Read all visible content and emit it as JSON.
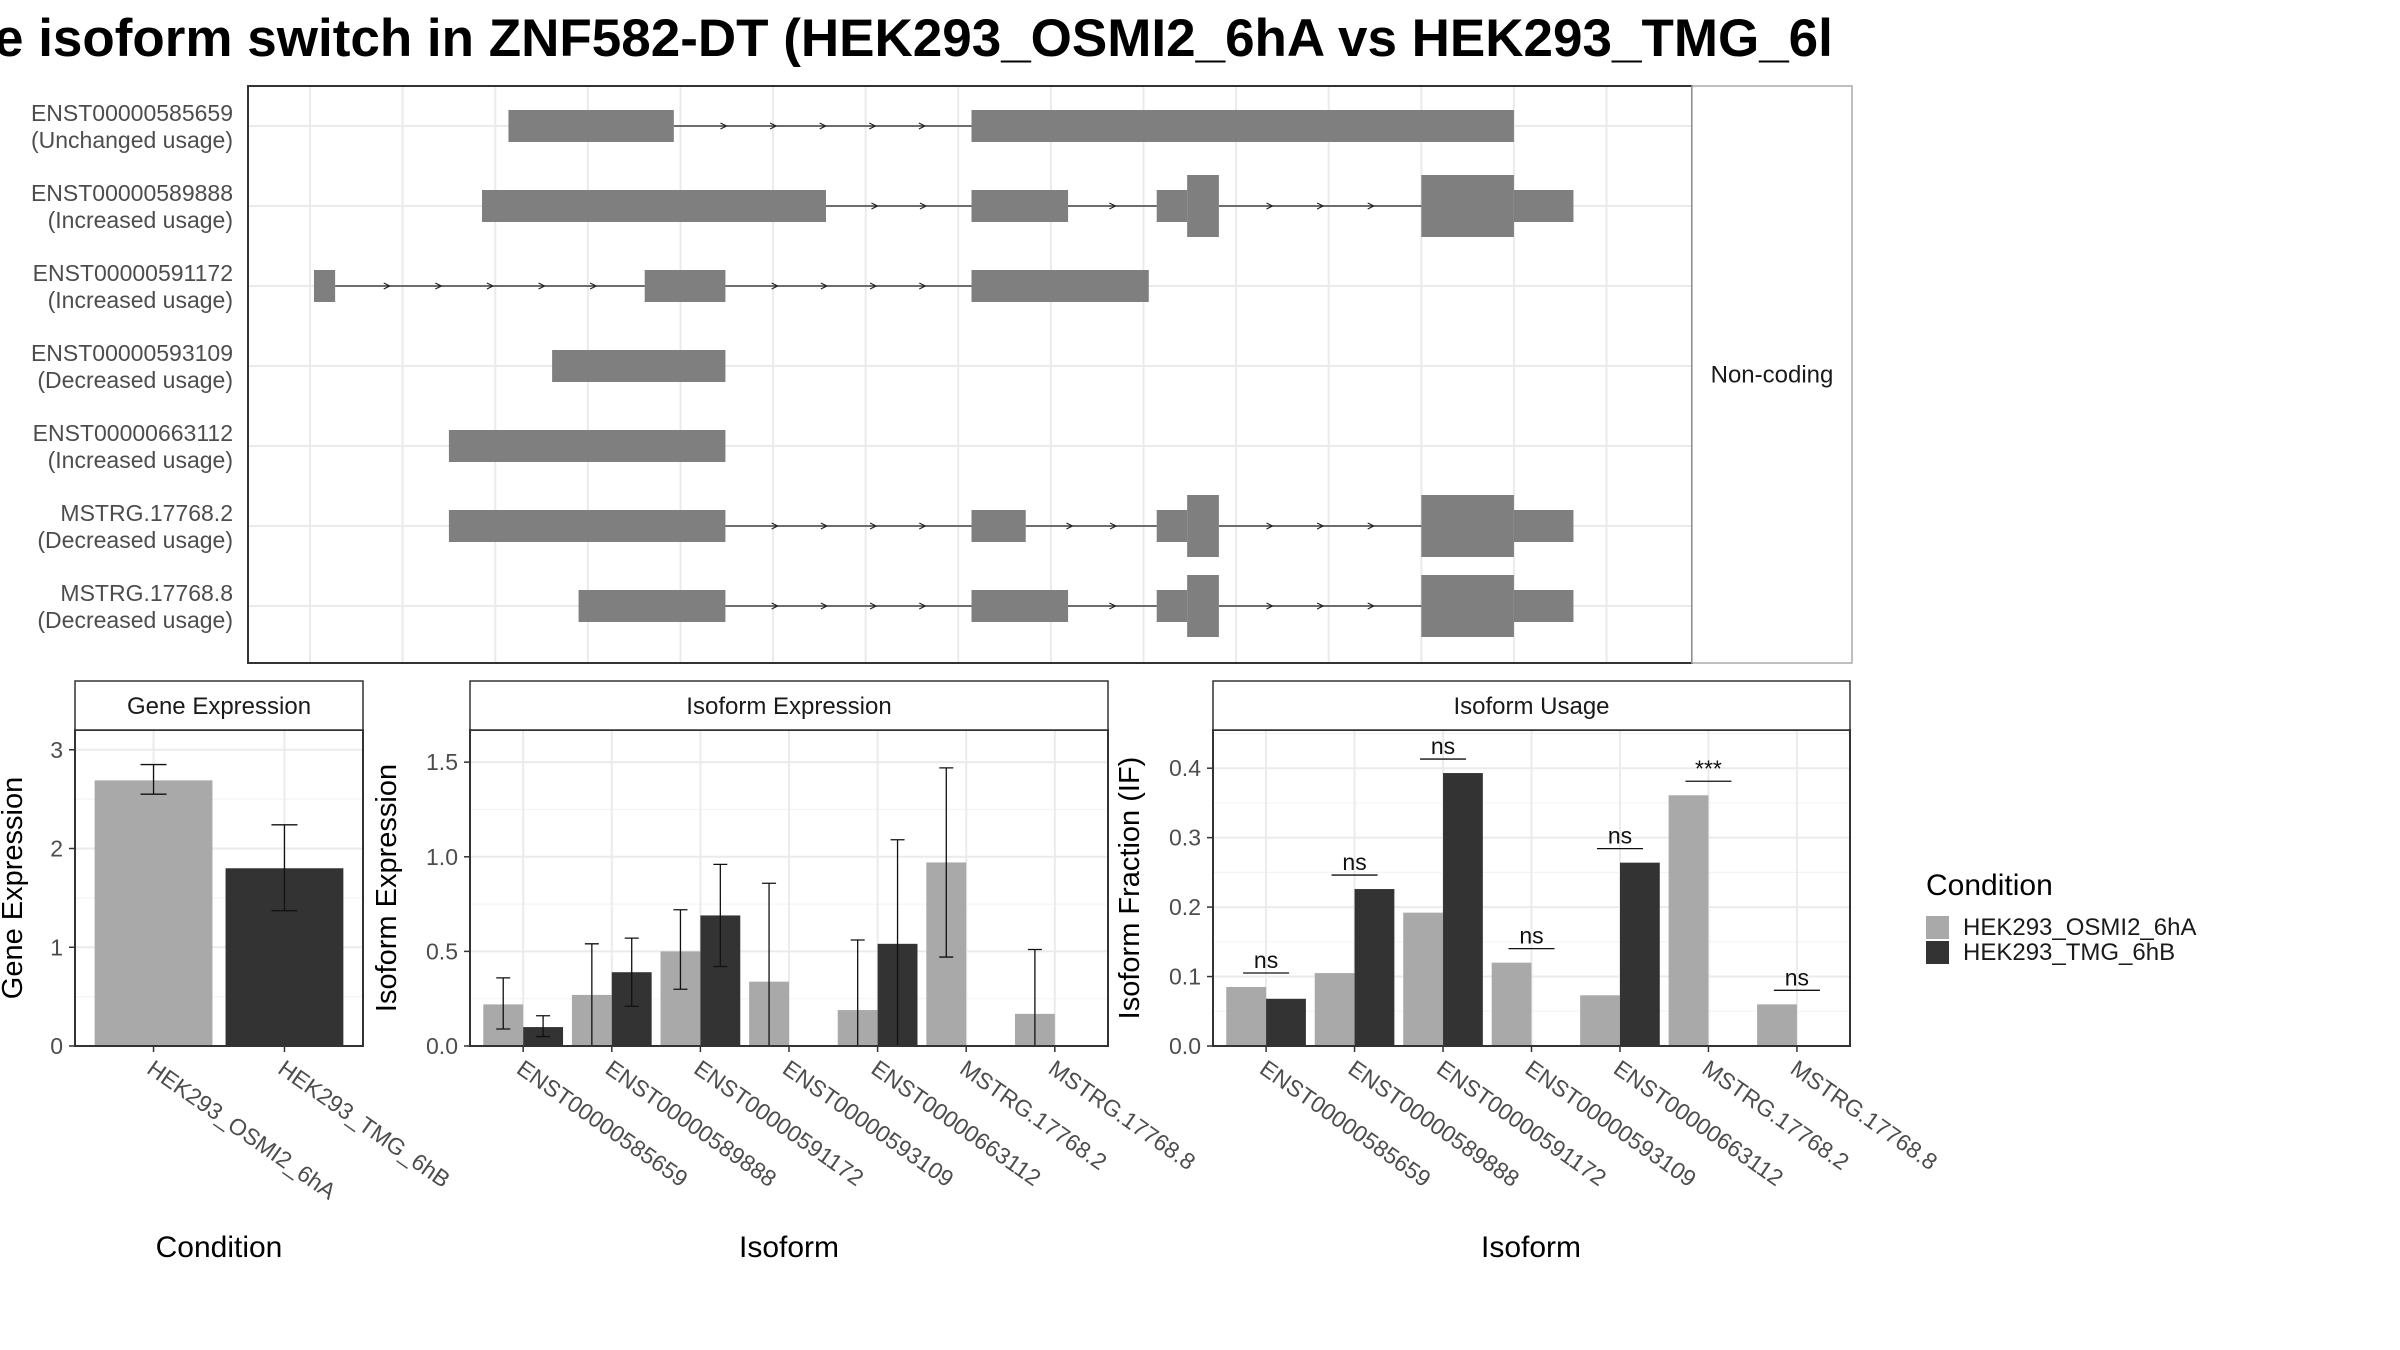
{
  "title": "e isoform switch in ZNF582-DT (HEK293_OSMI2_6hA vs HEK293_TMG_6l",
  "colors": {
    "exon": "#7f7f7f",
    "cond_a": "#a9a9a9",
    "cond_b": "#333333",
    "panel_border": "#333333",
    "strip_bg": "#ffffff",
    "grid_major": "#ebebeb",
    "grid_minor": "#f4f4f4",
    "axis_text": "#4d4d4d"
  },
  "transcript_panel": {
    "facet_label": "Non-coding",
    "transcripts": [
      {
        "id": "ENST00000585659",
        "usage": "(Unchanged usage)",
        "exons": [
          [
            150,
            275,
            "s"
          ],
          [
            500,
            910,
            "s"
          ]
        ]
      },
      {
        "id": "ENST00000589888",
        "usage": "(Increased usage)",
        "exons": [
          [
            130,
            390,
            "s"
          ],
          [
            500,
            573,
            "s"
          ],
          [
            640,
            663,
            "s"
          ],
          [
            663,
            687,
            "t"
          ],
          [
            840,
            910,
            "t"
          ],
          [
            910,
            955,
            "s"
          ]
        ]
      },
      {
        "id": "ENST00000591172",
        "usage": "(Increased usage)",
        "exons": [
          [
            3,
            19,
            "s"
          ],
          [
            253,
            314,
            "s"
          ],
          [
            500,
            634,
            "s"
          ]
        ]
      },
      {
        "id": "ENST00000593109",
        "usage": "(Decreased usage)",
        "exons": [
          [
            183,
            260,
            "s"
          ],
          [
            253,
            314,
            "s"
          ]
        ]
      },
      {
        "id": "ENST00000663112",
        "usage": "(Increased usage)",
        "exons": [
          [
            105,
            275,
            "s"
          ],
          [
            253,
            314,
            "s"
          ]
        ]
      },
      {
        "id": "MSTRG.17768.2",
        "usage": "(Decreased usage)",
        "exons": [
          [
            105,
            275,
            "s"
          ],
          [
            253,
            314,
            "s"
          ],
          [
            500,
            541,
            "s"
          ],
          [
            640,
            663,
            "s"
          ],
          [
            663,
            687,
            "t"
          ],
          [
            840,
            910,
            "t"
          ],
          [
            910,
            955,
            "s"
          ]
        ]
      },
      {
        "id": "MSTRG.17768.8",
        "usage": "(Decreased usage)",
        "exons": [
          [
            203,
            275,
            "s"
          ],
          [
            253,
            314,
            "s"
          ],
          [
            500,
            573,
            "s"
          ],
          [
            640,
            663,
            "s"
          ],
          [
            663,
            687,
            "t"
          ],
          [
            840,
            910,
            "t"
          ],
          [
            910,
            955,
            "s"
          ]
        ]
      }
    ]
  },
  "legend": {
    "title": "Condition",
    "items": [
      "HEK293_OSMI2_6hA",
      "HEK293_TMG_6hB"
    ]
  },
  "chart_data": [
    {
      "type": "bar",
      "title": "Gene Expression",
      "xlabel": "Condition",
      "ylabel": "Gene Expression",
      "ylim": [
        0,
        3.2
      ],
      "yticks": [
        0,
        1,
        2,
        3
      ],
      "categories": [
        "HEK293_OSMI2_6hA",
        "HEK293_TMG_6hB"
      ],
      "values": [
        2.69,
        1.8
      ],
      "error": [
        [
          2.55,
          2.85
        ],
        [
          1.37,
          2.24
        ]
      ]
    },
    {
      "type": "bar",
      "title": "Isoform Expression",
      "xlabel": "Isoform",
      "ylabel": "Isoform Expression",
      "ylim": [
        0,
        1.67
      ],
      "yticks": [
        0.0,
        0.5,
        1.0,
        1.5
      ],
      "categories": [
        "ENST00000585659",
        "ENST00000589888",
        "ENST00000591172",
        "ENST00000593109",
        "ENST00000663112",
        "MSTRG.17768.2",
        "MSTRG.17768.8"
      ],
      "series": [
        {
          "name": "HEK293_OSMI2_6hA",
          "values": [
            0.22,
            0.27,
            0.5,
            0.34,
            0.19,
            0.97,
            0.17
          ],
          "error": [
            [
              0.09,
              0.36
            ],
            [
              0.0,
              0.54
            ],
            [
              0.3,
              0.72
            ],
            [
              0.0,
              0.86
            ],
            [
              0.0,
              0.56
            ],
            [
              0.47,
              1.47
            ],
            [
              0.0,
              0.51
            ]
          ]
        },
        {
          "name": "HEK293_TMG_6hB",
          "values": [
            0.1,
            0.39,
            0.69,
            0.0,
            0.54,
            0.0,
            0.0
          ],
          "error": [
            [
              0.05,
              0.16
            ],
            [
              0.21,
              0.57
            ],
            [
              0.42,
              0.96
            ],
            [
              0.0,
              0.0
            ],
            [
              0.0,
              1.09
            ],
            [
              0.0,
              0.0
            ],
            [
              0.0,
              0.0
            ]
          ]
        }
      ]
    },
    {
      "type": "bar",
      "title": "Isoform Usage",
      "xlabel": "Isoform",
      "ylabel": "Isoform Fraction (IF)",
      "ylim": [
        0,
        0.455
      ],
      "yticks": [
        0.0,
        0.1,
        0.2,
        0.3,
        0.4
      ],
      "categories": [
        "ENST00000585659",
        "ENST00000589888",
        "ENST00000591172",
        "ENST00000593109",
        "ENST00000663112",
        "MSTRG.17768.2",
        "MSTRG.17768.8"
      ],
      "series": [
        {
          "name": "HEK293_OSMI2_6hA",
          "values": [
            0.085,
            0.105,
            0.192,
            0.12,
            0.073,
            0.361,
            0.06
          ]
        },
        {
          "name": "HEK293_TMG_6hB",
          "values": [
            0.068,
            0.226,
            0.393,
            0.0,
            0.264,
            0.0,
            0.0
          ]
        }
      ],
      "significance": [
        "ns",
        "ns",
        "ns",
        "ns",
        "ns",
        "***",
        "ns"
      ]
    }
  ]
}
